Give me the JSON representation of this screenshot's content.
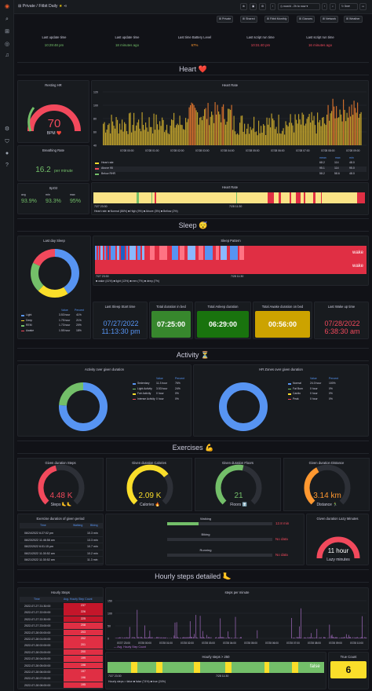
{
  "breadcrumb": {
    "folder": "Private",
    "separator": "/",
    "dashboard": "Fitbit Daily"
  },
  "top_links": [
    "Private",
    "Shared",
    "Fitbit Monthly",
    "Glances",
    "Network",
    "Weather"
  ],
  "time_range": "now/d - 2h to now",
  "refresh": "5m",
  "status": {
    "labels": [
      "Last update time",
      "Last update time",
      "Last time Battery Level",
      "Last script run time",
      "Last script run time"
    ],
    "values": [
      "10:29:48 pm",
      "18 minutes ago",
      "67%",
      "10:31:40 pm",
      "16 minutes ago"
    ],
    "colors": [
      "#73bf69",
      "#73bf69",
      "#ff9830",
      "#f2495c",
      "#f2495c"
    ]
  },
  "heart": {
    "row_title": "Heart ❤️",
    "resting_title": "Resting HR",
    "resting_value": "70",
    "resting_unit": "BPM ❤️",
    "breathing_title": "Breathing Rate",
    "breathing_value": "16.2",
    "breathing_unit": "per minute",
    "spo2_title": "SpO2",
    "spo2_labels": [
      "avg",
      "min",
      "max"
    ],
    "spo2_values": [
      "93.9%",
      "93.3%",
      "95%"
    ],
    "hr_title": "Heart Rate",
    "hr_yticks": [
      "120",
      "100",
      "80",
      "60",
      "40"
    ],
    "hr_xticks": [
      "07/28 00:00",
      "07/28 01:00",
      "07/28 02:00",
      "07/28 03:00",
      "07/28 04:00",
      "07/28 05:00",
      "07/28 06:00",
      "07/28 07:00",
      "07/28 08:00",
      "07/28 09:00"
    ],
    "hr_legend_head": [
      "mean",
      "max",
      "min"
    ],
    "hr_legend": [
      {
        "name": "Heart rate",
        "v": [
          "68.2",
          "114",
          "48.0"
        ],
        "color": "#fade2a"
      },
      {
        "name": "Above 95",
        "v": [
          "95.1",
          "114",
          "95.0"
        ],
        "color": "#f2495c"
      },
      {
        "name": "Below RHR",
        "v": [
          "58.2",
          "58.6",
          "48.0"
        ],
        "color": "#73bf69"
      }
    ],
    "hr_state_title": "Heart Rate",
    "hr_state_xticks": [
      "7/27 23:30",
      "7/28 11:30"
    ],
    "hr_state_end": "Ab",
    "hr_state_legend": "Heart rate: ■ Normal (86%) ■ High (9%) ■ Above (3%) ■ Bellow (2%)"
  },
  "sleep": {
    "row_title": "Sleep 😴",
    "last_day_title": "Last day Sleep",
    "legend_head": [
      "Value",
      "Percent"
    ],
    "legend": [
      {
        "name": "Light",
        "v": "3.53 hour",
        "p": "41%",
        "color": "#5794f2"
      },
      {
        "name": "Deep",
        "v": "1.75 hour",
        "p": "21%",
        "color": "#fade2a"
      },
      {
        "name": "REM",
        "v": "1.73 hour",
        "p": "20%",
        "color": "#73bf69"
      },
      {
        "name": "Awake",
        "v": "1.55 hour",
        "p": "18%",
        "color": "#f2495c"
      }
    ],
    "pattern_title": "Sleep Pattern",
    "pattern_labels": [
      "wake",
      "wake"
    ],
    "pattern_xticks": [
      "7/27 23:30",
      "7/28 11:30"
    ],
    "pattern_legend": "■ wake (41%) ■ light (13%) ■ rem (7%) ■ deep (7%)",
    "start_title": "Last Sleep Start time",
    "start_date": "07/27/2022",
    "start_time": "11:13:30 pm",
    "bed_title": "Total duration in bed",
    "bed_value": "07:25:00",
    "asleep_title": "Total Asleep duration",
    "asleep_value": "06:29:00",
    "awake_title": "Total Awake duration on bed",
    "awake_value": "00:56:00",
    "wake_title": "Last Wake up time",
    "wake_date": "07/28/2022",
    "wake_time": "6:38:30 am"
  },
  "activity": {
    "row_title": "Activity ⏳",
    "left_title": "Activity over given duration",
    "legend_head": [
      "Value",
      "Percent"
    ],
    "legend": [
      {
        "name": "Sedentary",
        "v": "11.3 hour",
        "p": "76%",
        "color": "#5794f2"
      },
      {
        "name": "Light Activity",
        "v": "3.53 hour",
        "p": "24%",
        "color": "#73bf69"
      },
      {
        "name": "Fair Activity",
        "v": "0 hour",
        "p": "0%",
        "color": "#fade2a"
      },
      {
        "name": "Intense Activity",
        "v": "0 hour",
        "p": "0%",
        "color": "#f2495c"
      }
    ],
    "right_title": "HR Zones over given duration",
    "zones": [
      {
        "name": "Normal",
        "v": "24.0 hour",
        "p": "100%",
        "color": "#5794f2"
      },
      {
        "name": "Fat Burn",
        "v": "0 hour",
        "p": "0%",
        "color": "#73bf69"
      },
      {
        "name": "Cardio",
        "v": "0 hour",
        "p": "0%",
        "color": "#fade2a"
      },
      {
        "name": "Peak",
        "v": "0 hour",
        "p": "0%",
        "color": "#f2495c"
      }
    ]
  },
  "exercises": {
    "row_title": "Exercises 💪",
    "gauges": [
      {
        "title": "Given duration Steps",
        "value": "4.48 K",
        "unit": "Steps 🦶🦶",
        "color": "#f2495c",
        "frac": 0.45
      },
      {
        "title": "Given duration Calories",
        "value": "2.09 K",
        "unit": "Calories 🔥",
        "color": "#fade2a",
        "frac": 0.7
      },
      {
        "title": "Given duration Floors",
        "value": "21",
        "unit": "Floors ⬆️",
        "color": "#73bf69",
        "frac": 0.55
      },
      {
        "title": "Given duration Distance",
        "value": "3.14 km",
        "unit": "Distance 🏃‍♂️",
        "color": "#ff9830",
        "frac": 0.4
      }
    ],
    "table_title": "Exercise duration of given period",
    "table_head": [
      "Time",
      "Walking",
      "Biking"
    ],
    "table_rows": [
      [
        "06/24/2022 6:27:02 pm",
        "10.3 min"
      ],
      [
        "06/23/2022 11:46:58 am",
        "13.3 min"
      ],
      [
        "06/22/2022 6:01:15 pm",
        "10.7 min"
      ],
      [
        "06/21/2022 11:30:52 am",
        "10.2 min"
      ],
      [
        "06/21/2022 11:30:52 am",
        "11.3 min"
      ]
    ],
    "bars": [
      {
        "title": "Walking",
        "value": "12.8 min"
      },
      {
        "title": "Biking",
        "value": "No data"
      },
      {
        "title": "Running",
        "value": "No data"
      }
    ],
    "lazy_title": "Given duration Lazy Minutes",
    "lazy_value": "11 hour",
    "lazy_unit": "Lazy minutes"
  },
  "hourly": {
    "row_title": "Hourly steps detailed 🦶",
    "table_title": "Hourly Steps",
    "head": [
      "Time",
      "Avg. Hourly Step Count"
    ],
    "rows": [
      [
        "2022-07-27 21:30:00",
        "237"
      ],
      [
        "2022-07-27 22:00:00",
        "226"
      ],
      [
        "2022-07-27 22:30:00",
        "225"
      ],
      [
        "2022-07-27 23:00:00",
        "208"
      ],
      [
        "2022-07-28 00:00:00",
        "203"
      ],
      [
        "2022-07-28 01:00:00",
        "202"
      ],
      [
        "2022-07-28 02:00:00",
        "201"
      ],
      [
        "2022-07-28 03:00:00",
        "200"
      ],
      [
        "2022-07-28 04:00:00",
        "199"
      ],
      [
        "2022-07-28 05:00:00",
        "198"
      ],
      [
        "2022-07-28 06:00:00",
        "197"
      ],
      [
        "2022-07-28 07:00:00",
        "196"
      ],
      [
        "2022-07-28 08:00:00",
        "195"
      ]
    ],
    "spm_title": "steps per minute",
    "spm_yticks": [
      "150",
      "100",
      "50",
      "0"
    ],
    "spm_xticks": [
      "07/27 23:00",
      "07/28 00:00",
      "07/28 01:00",
      "07/28 02:00",
      "07/28 03:00",
      "07/28 04:00",
      "07/28 05:00",
      "07/28 06:00",
      "07/28 07:00",
      "07/28 08:00",
      "07/28 09:00",
      "07/28 10:00"
    ],
    "spm_legend": "— Avg. Hourly Step Count",
    "above_title": "Hourly steps > 250",
    "above_label": "false",
    "above_xticks": [
      "7/27 23:30",
      "7/28 11:30"
    ],
    "above_legend": "Hourly steps > false ■ false (74%) ■ true (24%)",
    "true_title": "True Count",
    "true_value": "6"
  },
  "colors": {
    "bg": "#111217",
    "panel": "#181b1f",
    "green": "#73bf69",
    "red": "#f2495c",
    "yellow": "#fade2a",
    "blue": "#5794f2",
    "orange": "#ff9830"
  }
}
